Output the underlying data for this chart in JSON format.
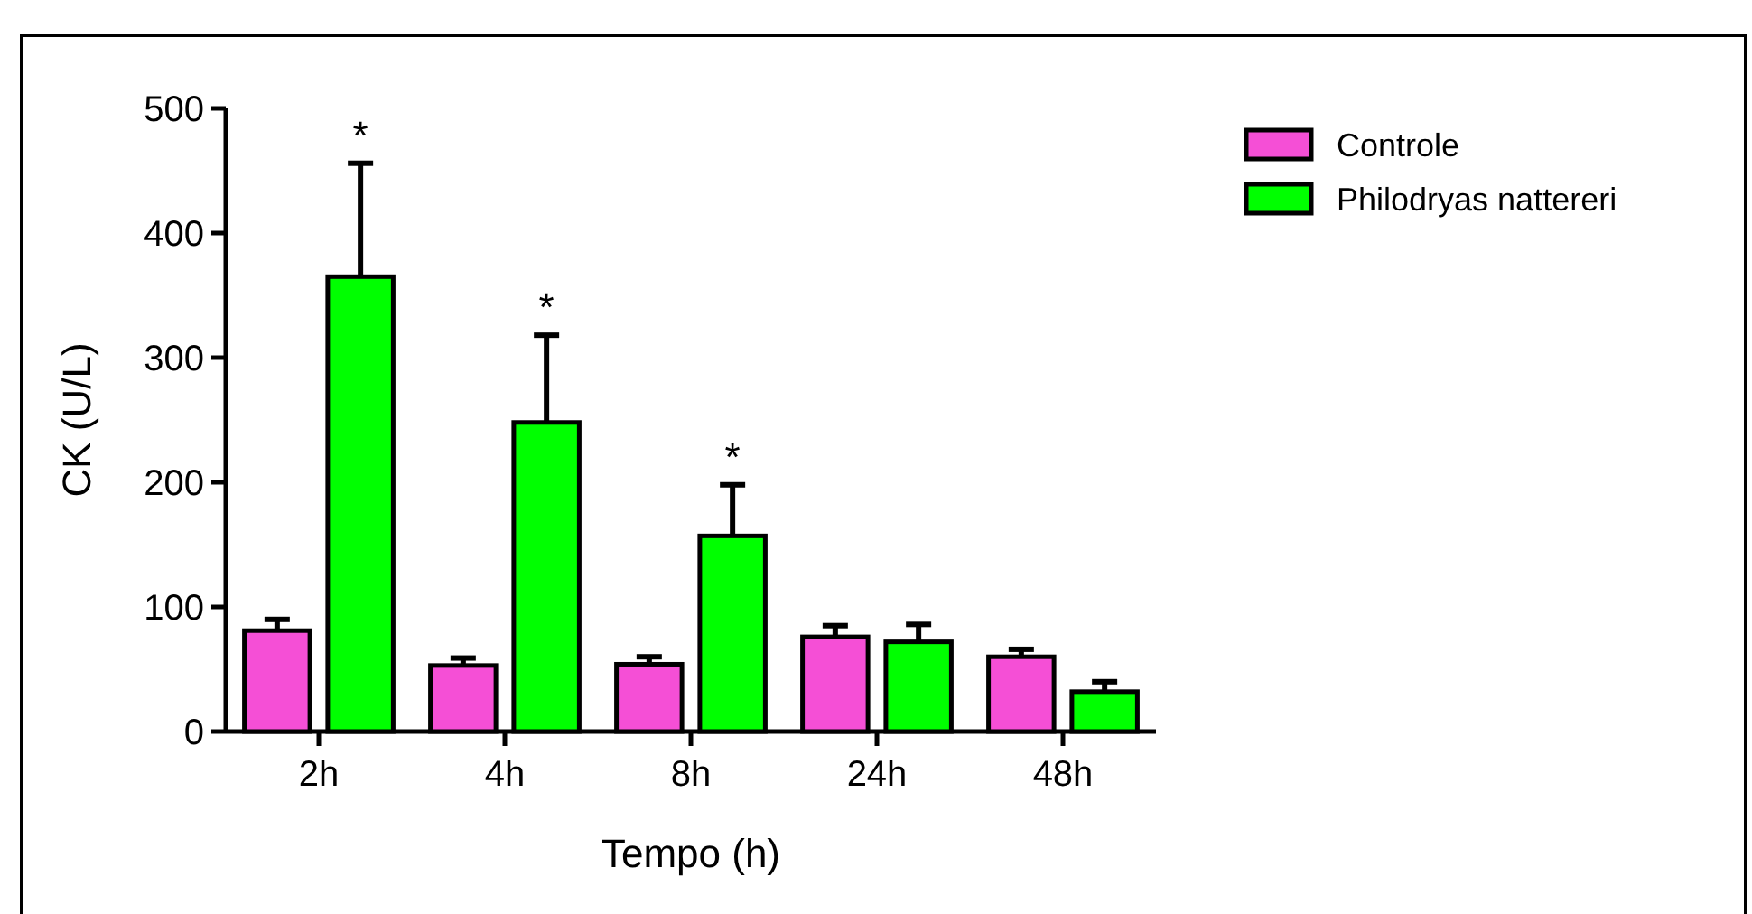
{
  "chart_data": {
    "type": "bar",
    "xlabel": "Tempo (h)",
    "ylabel": "CK (U/L)",
    "categories": [
      "2h",
      "4h",
      "8h",
      "24h",
      "48h"
    ],
    "series": [
      {
        "name": "Controle",
        "color": "#f54fd6",
        "values": [
          81,
          53,
          54,
          76,
          60
        ],
        "errors": [
          9,
          6,
          6,
          9,
          6
        ]
      },
      {
        "name": "Philodryas nattereri",
        "color": "#00ff00",
        "values": [
          365,
          248,
          157,
          72,
          32
        ],
        "errors": [
          91,
          70,
          41,
          14,
          8
        ]
      }
    ],
    "ylim": [
      0,
      500
    ],
    "yticks": [
      0,
      100,
      200,
      300,
      400,
      500
    ],
    "grid": false,
    "legend": "top right",
    "annotations": [
      "*",
      "*",
      "*"
    ]
  }
}
